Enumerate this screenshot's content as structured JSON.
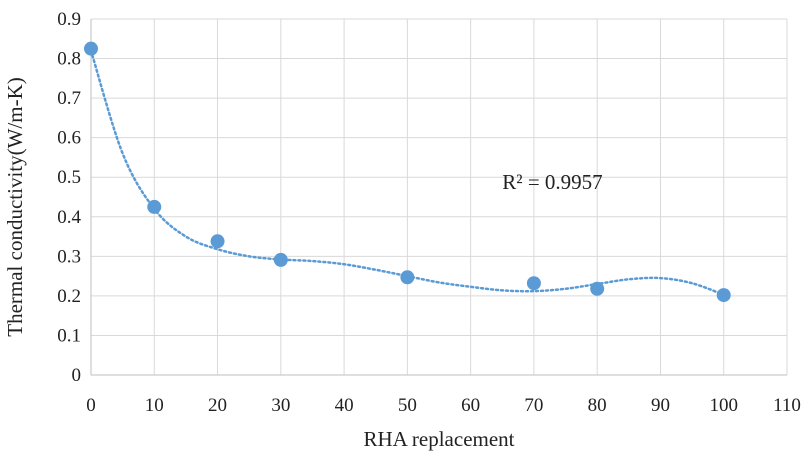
{
  "chart_data": {
    "type": "scatter",
    "title": "",
    "xlabel": "RHA replacement",
    "ylabel": "Thermal conductivity(W/m-K)",
    "xlim": [
      0,
      110
    ],
    "ylim": [
      0,
      0.9
    ],
    "x_ticks": [
      "0",
      "10",
      "20",
      "30",
      "40",
      "50",
      "60",
      "70",
      "80",
      "90",
      "100",
      "110"
    ],
    "y_ticks": [
      "0",
      "0.1",
      "0.2",
      "0.3",
      "0.4",
      "0.5",
      "0.6",
      "0.7",
      "0.8",
      "0.9"
    ],
    "grid": true,
    "legend": "none",
    "series": [
      {
        "x": [
          0,
          10,
          20,
          30,
          50,
          70,
          80,
          100
        ],
        "y": [
          0.825,
          0.425,
          0.338,
          0.291,
          0.247,
          0.232,
          0.218,
          0.202
        ],
        "color": "#5b9bd5",
        "marker": "circle"
      }
    ],
    "trendline": {
      "style": "dotted",
      "color": "#5b9bd5",
      "curve_x": [
        0,
        5,
        10,
        15,
        20,
        25,
        30,
        35,
        40,
        45,
        50,
        55,
        60,
        65,
        70,
        75,
        80,
        85,
        90,
        95,
        100
      ],
      "curve_y": [
        0.82,
        0.56,
        0.42,
        0.35,
        0.318,
        0.3,
        0.292,
        0.288,
        0.28,
        0.266,
        0.25,
        0.234,
        0.223,
        0.214,
        0.212,
        0.218,
        0.23,
        0.242,
        0.245,
        0.232,
        0.203
      ]
    },
    "annotations": [
      {
        "text": "R² = 0.9957",
        "x": 65,
        "y": 0.47
      }
    ]
  }
}
